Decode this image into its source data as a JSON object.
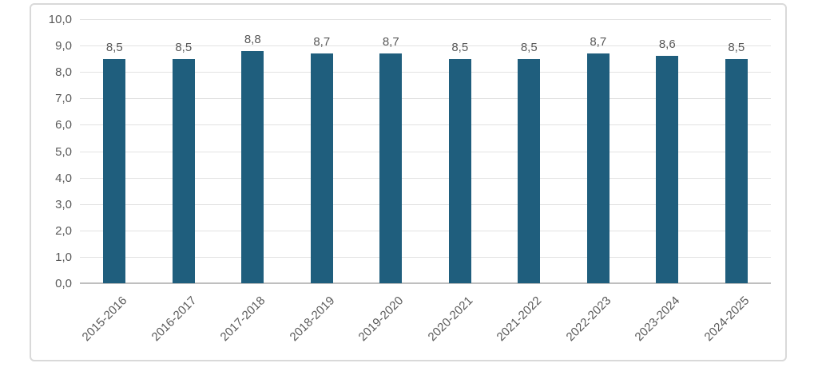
{
  "chart_data": {
    "type": "bar",
    "title": "",
    "xlabel": "",
    "ylabel": "",
    "categories": [
      "2015-2016",
      "2016-2017",
      "2017-2018",
      "2018-2019",
      "2019-2020",
      "2020-2021",
      "2021-2022",
      "2022-2023",
      "2023-2024",
      "2024-2025"
    ],
    "values": [
      8.5,
      8.5,
      8.8,
      8.7,
      8.7,
      8.5,
      8.5,
      8.7,
      8.6,
      8.5
    ],
    "value_labels": [
      "8,5",
      "8,5",
      "8,8",
      "8,7",
      "8,7",
      "8,5",
      "8,5",
      "8,7",
      "8,6",
      "8,5"
    ],
    "y_tick_labels": [
      "10,0",
      "9,0",
      "8,0",
      "7,0",
      "6,0",
      "5,0",
      "4,0",
      "3,0",
      "2,0",
      "1,0",
      "0,0"
    ],
    "y_tick_values": [
      10,
      9,
      8,
      7,
      6,
      5,
      4,
      3,
      2,
      1,
      0
    ],
    "ylim": [
      0,
      10
    ],
    "grid": "horizontal",
    "legend_position": "none",
    "colors": {
      "bar": "#1f5e7d",
      "gridline": "#e2e2e2",
      "axis_line": "#bfbfbf",
      "tick_label": "#595959",
      "data_label": "#595959",
      "frame_border": "#d9d9d9",
      "background": "#ffffff"
    }
  }
}
